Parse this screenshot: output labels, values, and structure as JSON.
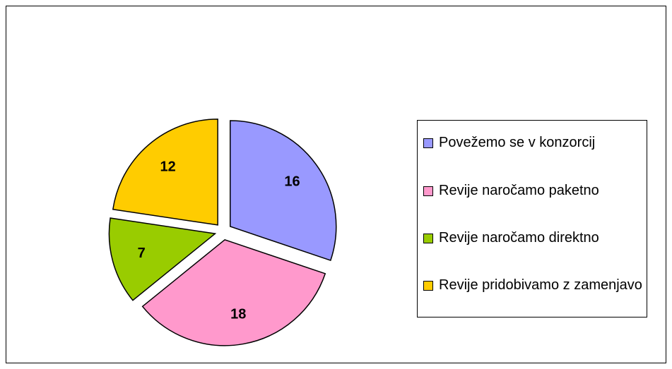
{
  "chart_data": {
    "type": "pie",
    "categories": [
      "Povežemo se v konzorcij",
      "Revije naročamo paketno",
      "Revije naročamo direktno",
      "Revije pridobivamo z zamenjavo"
    ],
    "values": [
      16,
      18,
      7,
      12
    ],
    "colors": [
      "#9999ff",
      "#ff99cc",
      "#99cc00",
      "#ffcc00"
    ],
    "legend": "right"
  }
}
